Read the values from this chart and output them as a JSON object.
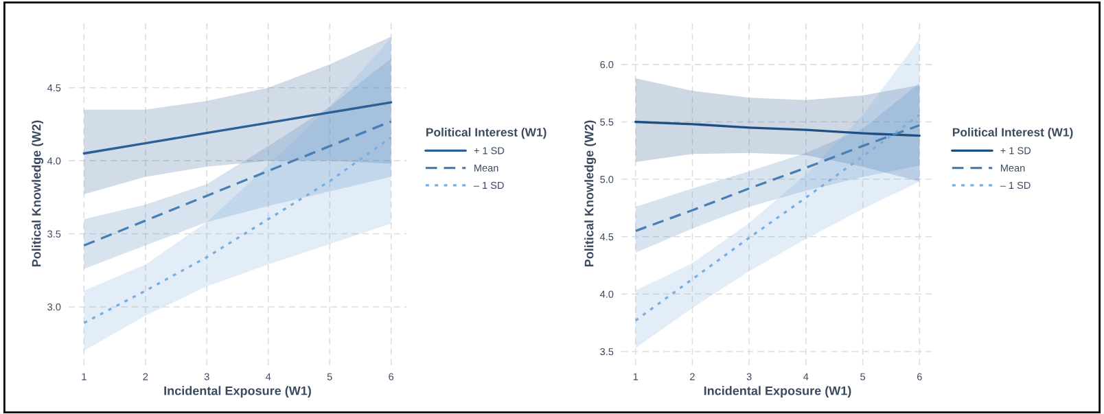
{
  "chart_data": [
    {
      "type": "line",
      "xlabel": "Incidental Exposure (W1)",
      "ylabel": "Political Knowledge (W2)",
      "legend_title": "Political Interest (W1)",
      "legend": "right",
      "grid": true,
      "x": [
        1,
        2,
        3,
        4,
        5,
        6
      ],
      "xlim": [
        0.75,
        6.25
      ],
      "xticks": [
        1,
        2,
        3,
        4,
        5,
        6
      ],
      "ylim": [
        2.6,
        4.95
      ],
      "yticks": [
        {
          "value": 3.0,
          "label": "3.0"
        },
        {
          "value": 3.5,
          "label": "3.5"
        },
        {
          "value": 4.0,
          "label": "4.0"
        },
        {
          "value": 4.5,
          "label": "4.5"
        }
      ],
      "series": [
        {
          "name": "+ 1 SD",
          "color": "#2c5f94",
          "line_style": "solid",
          "values": [
            4.05,
            4.12,
            4.19,
            4.26,
            4.33,
            4.4
          ],
          "lower": [
            3.77,
            3.89,
            3.96,
            4.0,
            4.0,
            3.98
          ],
          "upper": [
            4.35,
            4.35,
            4.41,
            4.5,
            4.66,
            4.85
          ]
        },
        {
          "name": "Mean",
          "color": "#4a7fb5",
          "line_style": "dashed",
          "values": [
            3.42,
            3.59,
            3.76,
            3.93,
            4.1,
            4.27
          ],
          "lower": [
            3.26,
            3.42,
            3.58,
            3.69,
            3.79,
            3.89
          ],
          "upper": [
            3.6,
            3.7,
            3.84,
            4.1,
            4.37,
            4.7
          ]
        },
        {
          "name": "– 1 SD",
          "color": "#7aaee0",
          "line_style": "dotted",
          "values": [
            2.89,
            3.11,
            3.34,
            3.6,
            3.86,
            4.16
          ],
          "lower": [
            2.7,
            2.94,
            3.14,
            3.29,
            3.43,
            3.57
          ],
          "upper": [
            3.11,
            3.29,
            3.58,
            3.97,
            4.37,
            4.84
          ]
        }
      ]
    },
    {
      "type": "line",
      "xlabel": "Incidental Exposure (W1)",
      "ylabel": "Political Knowledge (W2)",
      "legend_title": "Political Interest (W1)",
      "legend": "right",
      "grid": true,
      "x": [
        1,
        2,
        3,
        4,
        5,
        6
      ],
      "xlim": [
        0.75,
        6.25
      ],
      "xticks": [
        1,
        2,
        3,
        4,
        5,
        6
      ],
      "ylim": [
        3.38,
        6.37
      ],
      "yticks": [
        3.5,
        {
          "value": 4.0,
          "label": "4.0"
        },
        4.5,
        {
          "value": 5.0,
          "label": "5.0"
        },
        5.5,
        {
          "value": 6.0,
          "label": "6.0"
        }
      ],
      "series": [
        {
          "name": "+ 1 SD",
          "color": "#1f4e82",
          "line_style": "solid",
          "values": [
            5.5,
            5.48,
            5.45,
            5.43,
            5.4,
            5.38
          ],
          "lower": [
            5.15,
            5.22,
            5.23,
            5.21,
            5.11,
            4.98
          ],
          "upper": [
            5.88,
            5.77,
            5.71,
            5.69,
            5.73,
            5.82
          ]
        },
        {
          "name": "Mean",
          "color": "#4a7fb5",
          "line_style": "dashed",
          "values": [
            4.55,
            4.73,
            4.92,
            5.1,
            5.29,
            5.47
          ],
          "lower": [
            4.36,
            4.57,
            4.76,
            4.9,
            5.02,
            5.12
          ],
          "upper": [
            4.76,
            4.92,
            5.07,
            5.23,
            5.44,
            5.84
          ]
        },
        {
          "name": "– 1 SD",
          "color": "#7aaee0",
          "line_style": "dotted",
          "values": [
            3.77,
            4.13,
            4.49,
            4.84,
            5.2,
            5.56
          ],
          "lower": [
            3.53,
            3.88,
            4.2,
            4.48,
            4.74,
            4.98
          ],
          "upper": [
            4.03,
            4.27,
            4.62,
            5.04,
            5.56,
            6.22
          ]
        }
      ]
    }
  ]
}
